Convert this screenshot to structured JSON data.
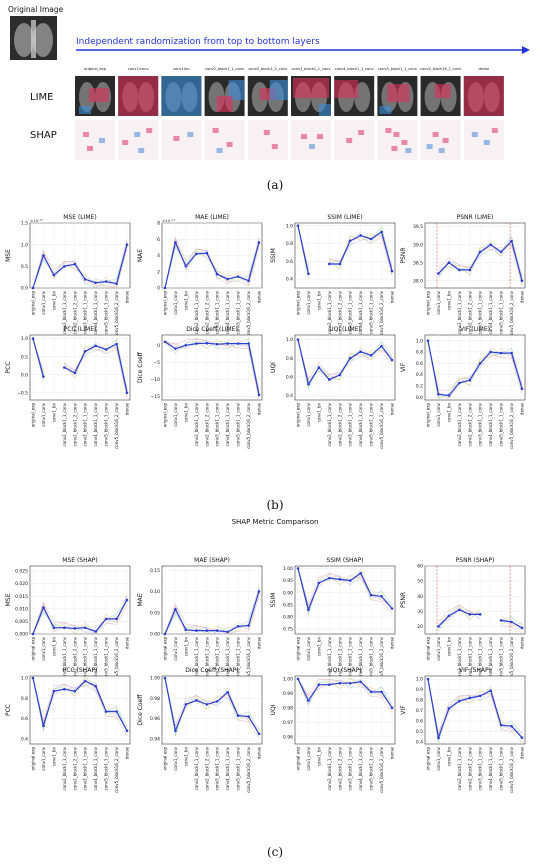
{
  "section_a": {
    "original_image_label": "Original Image",
    "arrow_label": "Independent randomization from top to bottom layers",
    "row_labels": [
      "LIME",
      "SHAP"
    ],
    "column_labels": [
      "original_exp",
      "conv1/conv",
      "conv1/bn",
      "conv2_block1_1_conv",
      "conv2_block1_2_conv",
      "conv3_block1_1_conv",
      "conv4_block1_1_conv",
      "conv5_block1_1_conv",
      "conv5_block16_2_conv",
      "dense"
    ],
    "caption": "(a)",
    "colors": {
      "arrow": "#2233dd",
      "lime_red": "#e0305a",
      "lime_blue": "#3b8fd8",
      "shap_red": "#e0306a",
      "shap_blue": "#4a86d8"
    }
  },
  "section_b": {
    "caption": "(b)"
  },
  "section_c": {
    "heading": "SHAP Metric Comparison",
    "caption": "(c)"
  },
  "chart_data": [
    {
      "type": "line",
      "title": "MSE (LIME)",
      "ylabel": "MSE",
      "ylim": [
        0,
        1.5
      ],
      "yticks": [
        0,
        0.5,
        1.0,
        1.5
      ],
      "ytick_labels": [
        "0.0",
        "0.5",
        "1.0",
        "1.5"
      ],
      "exponent": "×10⁻¹⁵",
      "x": [
        "original_exp",
        "conv1_conv",
        "conv1_bn",
        "conv2_block1_1_conv",
        "conv2_block1_2_conv",
        "conv3_block1_1_conv",
        "conv4_block1_1_conv",
        "conv5_block1_1_conv",
        "conv5_block16_2_conv",
        "dense"
      ],
      "series": [
        {
          "values": [
            0,
            0.75,
            0.3,
            0.5,
            0.55,
            0.2,
            0.12,
            0.15,
            0.1,
            1.0
          ]
        }
      ]
    },
    {
      "type": "line",
      "title": "MAE (LIME)",
      "ylabel": "MAE",
      "ylim": [
        0,
        8
      ],
      "yticks": [
        0,
        2,
        4,
        6,
        8
      ],
      "ytick_labels": [
        "0",
        "2",
        "4",
        "6",
        "8"
      ],
      "exponent": "×10⁻¹³",
      "x": [
        "original_exp",
        "conv1_conv",
        "conv1_bn",
        "conv2_block1_1_conv",
        "conv2_block1_2_conv",
        "conv3_block1_1_conv",
        "conv4_block1_1_conv",
        "conv5_block1_1_conv",
        "conv5_block16_2_conv",
        "dense"
      ],
      "series": [
        {
          "values": [
            0,
            5.6,
            2.7,
            4.2,
            4.3,
            1.7,
            1.1,
            1.4,
            0.9,
            5.6
          ]
        }
      ]
    },
    {
      "type": "line",
      "title": "SSIM (LIME)",
      "ylabel": "SSIM",
      "ylim": [
        0.3,
        1.03
      ],
      "yticks": [
        0.4,
        0.6,
        0.8,
        1.0
      ],
      "ytick_labels": [
        "0.4",
        "0.6",
        "0.8",
        "1.0"
      ],
      "x": [
        "original_exp",
        "conv1_conv",
        "conv1_bn",
        "conv2_block1_1_conv",
        "conv2_block1_2_conv",
        "conv3_block1_1_conv",
        "conv4_block1_1_conv",
        "conv5_block1_1_conv",
        "conv5_block16_2_conv",
        "dense"
      ],
      "series": [
        {
          "values": [
            1.0,
            0.46,
            null,
            0.57,
            0.57,
            0.83,
            0.89,
            0.85,
            0.93,
            0.49
          ]
        }
      ]
    },
    {
      "type": "line",
      "title": "PSNR (LIME)",
      "ylabel": "PSNR",
      "ylim": [
        37.8,
        39.6
      ],
      "yticks": [
        38.0,
        38.5,
        39.0,
        39.5
      ],
      "ytick_labels": [
        "38.0",
        "38.5",
        "39.0",
        "39.5"
      ],
      "x": [
        "original_exp",
        "conv1_conv",
        "conv1_bn",
        "conv2_block1_1_conv",
        "conv2_block1_2_conv",
        "conv3_block1_1_conv",
        "conv4_block1_1_conv",
        "conv5_block1_1_conv",
        "conv5_block16_2_conv",
        "dense"
      ],
      "series": [
        {
          "values": [
            null,
            38.2,
            38.5,
            38.3,
            38.3,
            38.8,
            39.0,
            38.8,
            39.1,
            38.0
          ]
        }
      ]
    },
    {
      "type": "line",
      "title": "PCC (LIME)",
      "ylabel": "PCC",
      "ylim": [
        -0.7,
        1.1
      ],
      "yticks": [
        -0.5,
        0.0,
        0.5,
        1.0
      ],
      "ytick_labels": [
        "−0.5",
        "0.0",
        "0.5",
        "1.0"
      ],
      "x": [
        "original_exp",
        "conv1_conv",
        "conv1_bn",
        "conv2_block1_1_conv",
        "conv2_block1_2_conv",
        "conv3_block1_1_conv",
        "conv4_block1_1_conv",
        "conv5_block1_1_conv",
        "conv5_block16_2_conv",
        "dense"
      ],
      "series": [
        {
          "values": [
            1.0,
            -0.05,
            null,
            0.2,
            0.05,
            0.65,
            0.8,
            0.7,
            0.85,
            -0.5
          ]
        }
      ]
    },
    {
      "type": "line",
      "title": "Dice Coeff (LIME)",
      "ylabel": "Dice Coeff",
      "ylim": [
        -16,
        3
      ],
      "yticks": [
        -15,
        -10,
        -5,
        0
      ],
      "ytick_labels": [
        "−15",
        "−10",
        "−5",
        "0"
      ],
      "x": [
        "original_exp",
        "conv1_conv",
        "conv1_bn",
        "conv2_block1_1_conv",
        "conv2_block1_2_conv",
        "conv3_block1_1_conv",
        "conv4_block1_1_conv",
        "conv5_block1_1_conv",
        "conv5_block16_2_conv",
        "dense"
      ],
      "series": [
        {
          "values": [
            1.0,
            -1.0,
            0.0,
            0.5,
            0.6,
            0.3,
            0.5,
            0.5,
            0.5,
            -14.5
          ]
        }
      ]
    },
    {
      "type": "line",
      "title": "UQI (LIME)",
      "ylabel": "UQI",
      "ylim": [
        0.35,
        1.05
      ],
      "yticks": [
        0.4,
        0.6,
        0.8,
        1.0
      ],
      "ytick_labels": [
        "0.4",
        "0.6",
        "0.8",
        "1.0"
      ],
      "x": [
        "original_exp",
        "conv1_conv",
        "conv1_bn",
        "conv2_block1_1_conv",
        "conv2_block1_2_conv",
        "conv3_block1_1_conv",
        "conv4_block1_1_conv",
        "conv5_block1_1_conv",
        "conv5_block16_2_conv",
        "dense"
      ],
      "series": [
        {
          "values": [
            1.0,
            0.52,
            0.7,
            0.57,
            0.62,
            0.8,
            0.87,
            0.83,
            0.93,
            0.78
          ]
        }
      ]
    },
    {
      "type": "line",
      "title": "VIF (LIME)",
      "ylabel": "VIF",
      "ylim": [
        -0.05,
        1.1
      ],
      "yticks": [
        0.0,
        0.2,
        0.4,
        0.6,
        0.8,
        1.0
      ],
      "ytick_labels": [
        "0.0",
        "0.2",
        "0.4",
        "0.6",
        "0.8",
        "1.0"
      ],
      "x": [
        "original_exp",
        "conv1_conv",
        "conv1_bn",
        "conv2_block1_1_conv",
        "conv2_block1_2_conv",
        "conv3_block1_1_conv",
        "conv4_block1_1_conv",
        "conv5_block1_1_conv",
        "conv5_block16_2_conv",
        "dense"
      ],
      "series": [
        {
          "values": [
            1.0,
            0.05,
            0.03,
            0.25,
            0.3,
            0.6,
            0.8,
            0.78,
            0.78,
            0.15
          ]
        }
      ]
    },
    {
      "type": "line",
      "title": "MSE (SHAP)",
      "ylabel": "MSE",
      "ylim": [
        0,
        0.027
      ],
      "yticks": [
        0,
        0.005,
        0.01,
        0.015,
        0.02,
        0.025
      ],
      "ytick_labels": [
        "0.000",
        "0.005",
        "0.010",
        "0.015",
        "0.020",
        "0.025"
      ],
      "x": [
        "original exp",
        "conv1_conv",
        "conv1_bn",
        "conv2_block1_1_conv",
        "conv2_block1_2_conv",
        "conv3_block1_1_conv",
        "conv4_block1_1_conv",
        "conv5_block1_1_conv",
        "conv5_block16_2_conv",
        "dense"
      ],
      "series": [
        {
          "values": [
            0,
            0.0105,
            0.0025,
            0.0025,
            0.0022,
            0.0025,
            0.001,
            0.006,
            0.006,
            0.0135
          ]
        }
      ]
    },
    {
      "type": "line",
      "title": "MAE (SHAP)",
      "ylabel": "MAE",
      "ylim": [
        0,
        0.16
      ],
      "yticks": [
        0,
        0.05,
        0.1,
        0.15
      ],
      "ytick_labels": [
        "0.00",
        "0.05",
        "0.10",
        "0.15"
      ],
      "x": [
        "original exp",
        "conv1_conv",
        "conv1_bn",
        "conv2_block1_1_conv",
        "conv2_block1_2_conv",
        "conv3_block1_1_conv",
        "conv4_block1_1_conv",
        "conv5_block1_1_conv",
        "conv5_block16_2_conv",
        "dense"
      ],
      "series": [
        {
          "values": [
            0,
            0.058,
            0.01,
            0.008,
            0.008,
            0.008,
            0.005,
            0.018,
            0.02,
            0.1
          ]
        }
      ]
    },
    {
      "type": "line",
      "title": "SSIM (SHAP)",
      "ylabel": "SSIM",
      "ylim": [
        0.73,
        1.01
      ],
      "yticks": [
        0.75,
        0.8,
        0.85,
        0.9,
        0.95,
        1.0
      ],
      "ytick_labels": [
        "0.75",
        "0.80",
        "0.85",
        "0.90",
        "0.95",
        "1.00"
      ],
      "x": [
        "original exp",
        "conv1_conv",
        "conv1_bn",
        "conv2_block1_1_conv",
        "conv2_block1_2_conv",
        "conv3_block1_1_conv",
        "conv4_block1_1_conv",
        "conv5_block1_1_conv",
        "conv5_block16_2_conv",
        "dense"
      ],
      "series": [
        {
          "values": [
            1.0,
            0.83,
            0.94,
            0.96,
            0.955,
            0.95,
            0.98,
            0.89,
            0.885,
            0.835
          ]
        }
      ]
    },
    {
      "type": "line",
      "title": "PSNR (SHAP)",
      "ylabel": "PSNR",
      "ylim": [
        15,
        60
      ],
      "yticks": [
        20,
        30,
        40,
        50,
        60
      ],
      "ytick_labels": [
        "20",
        "30",
        "40",
        "50",
        "60"
      ],
      "x": [
        "original exp",
        "conv1_conv",
        "conv1_bn",
        "conv2_block1_1_conv",
        "conv2_block1_2_conv",
        "conv3_block1_1_conv",
        "conv4_block1_1_conv",
        "conv5_block1_1_conv",
        "conv5_block16_2_conv",
        "dense"
      ],
      "series": [
        {
          "values": [
            null,
            20,
            27,
            31,
            28,
            28,
            null,
            24,
            23,
            19
          ]
        }
      ]
    },
    {
      "type": "line",
      "title": "PCC (SHAP)",
      "ylabel": "PCC",
      "ylim": [
        0.35,
        1.02
      ],
      "yticks": [
        0.4,
        0.6,
        0.8,
        1.0
      ],
      "ytick_labels": [
        "0.4",
        "0.6",
        "0.8",
        "1.0"
      ],
      "x": [
        "original exp",
        "conv1_conv",
        "conv1_bn",
        "conv2_block1_1_conv",
        "conv2_block1_2_conv",
        "conv3_block1_1_conv",
        "conv4_block1_1_conv",
        "conv5_block1_1_conv",
        "conv5_block16_2_conv",
        "dense"
      ],
      "series": [
        {
          "values": [
            1.0,
            0.53,
            0.87,
            0.89,
            0.87,
            0.97,
            0.92,
            0.67,
            0.67,
            0.48
          ]
        }
      ]
    },
    {
      "type": "line",
      "title": "Dice Coeff (SHAP)",
      "ylabel": "Dice Coeff",
      "ylim": [
        0.935,
        1.002
      ],
      "yticks": [
        0.94,
        0.96,
        0.98,
        1.0
      ],
      "ytick_labels": [
        "0.94",
        "0.96",
        "0.98",
        "1.00"
      ],
      "x": [
        "original exp",
        "conv1_conv",
        "conv1_bn",
        "conv2_block1_1_conv",
        "conv2_block1_2_conv",
        "conv3_block1_1_conv",
        "conv4_block1_1_conv",
        "conv5_block1_1_conv",
        "conv5_block16_2_conv",
        "dense"
      ],
      "series": [
        {
          "values": [
            1.0,
            0.948,
            0.974,
            0.978,
            0.974,
            0.977,
            0.986,
            0.963,
            0.962,
            0.945
          ]
        }
      ]
    },
    {
      "type": "line",
      "title": "UQI (SHAP)",
      "ylabel": "UQI",
      "ylim": [
        0.955,
        1.002
      ],
      "yticks": [
        0.96,
        0.97,
        0.98,
        0.99,
        1.0
      ],
      "ytick_labels": [
        "0.96",
        "0.97",
        "0.98",
        "0.99",
        "1.00"
      ],
      "x": [
        "original exp",
        "conv1_conv",
        "conv1_bn",
        "conv2_block1_1_conv",
        "conv2_block1_2_conv",
        "conv3_block1_1_conv",
        "conv4_block1_1_conv",
        "conv5_block1_1_conv",
        "conv5_block16_2_conv",
        "dense"
      ],
      "series": [
        {
          "values": [
            1.0,
            0.985,
            0.996,
            0.996,
            0.997,
            0.997,
            0.998,
            0.991,
            0.991,
            0.98
          ]
        }
      ]
    },
    {
      "type": "line",
      "title": "VIF (SHAP)",
      "ylabel": "VIF",
      "ylim": [
        0.38,
        1.03
      ],
      "yticks": [
        0.4,
        0.5,
        0.6,
        0.7,
        0.8,
        0.9,
        1.0
      ],
      "ytick_labels": [
        "0.4",
        "0.5",
        "0.6",
        "0.7",
        "0.8",
        "0.9",
        "1.0"
      ],
      "x": [
        "original exp",
        "conv1_conv",
        "conv1_bn",
        "conv2_block1_1_conv",
        "conv2_block1_2_conv",
        "conv3_block1_1_conv",
        "conv4_block1_1_conv",
        "conv5_block1_1_conv",
        "conv5_block16_2_conv",
        "dense"
      ],
      "series": [
        {
          "values": [
            1.0,
            0.44,
            0.72,
            0.79,
            0.82,
            0.84,
            0.89,
            0.56,
            0.55,
            0.44
          ]
        }
      ]
    }
  ]
}
